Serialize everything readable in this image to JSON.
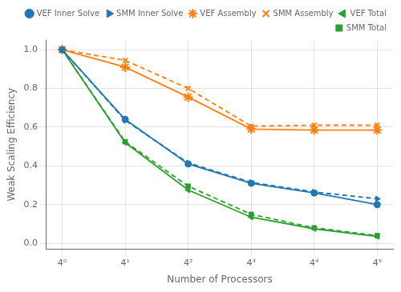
{
  "chart_data": {
    "type": "line",
    "x": [
      0,
      1,
      2,
      3,
      4,
      5
    ],
    "xlim": [
      -0.25,
      5.25
    ],
    "xticks": [
      {
        "value": 0,
        "label": "4⁰"
      },
      {
        "value": 1,
        "label": "4¹"
      },
      {
        "value": 2,
        "label": "4²"
      },
      {
        "value": 3,
        "label": "4³"
      },
      {
        "value": 4,
        "label": "4⁴"
      },
      {
        "value": 5,
        "label": "4⁵"
      }
    ],
    "xlabel": "Number of Processors",
    "ylabel": "Weak Scaling Efficiency",
    "ylim": [
      -0.03,
      1.05
    ],
    "yticks": [
      {
        "value": 0,
        "label": "0.0"
      },
      0.2,
      0.4,
      0.6,
      0.8,
      {
        "value": 1,
        "label": "1.0"
      }
    ],
    "grid": true,
    "legend": "upper right",
    "series": [
      {
        "name": "VEF Inner Solve",
        "color": "#1f77b4",
        "line_style": "solid",
        "marker": "circle",
        "values": [
          1.0,
          0.64,
          0.41,
          0.31,
          0.26,
          0.2
        ]
      },
      {
        "name": "SMM Inner Solve",
        "color": "#1f77b4",
        "line_style": "dashed",
        "marker": "triangle-right",
        "values": [
          1.0,
          0.635,
          0.415,
          0.315,
          0.265,
          0.23
        ]
      },
      {
        "name": "VEF Assembly",
        "color": "#ff7f0e",
        "line_style": "solid",
        "marker": "star",
        "values": [
          1.0,
          0.91,
          0.755,
          0.59,
          0.585,
          0.585
        ]
      },
      {
        "name": "SMM Assembly",
        "color": "#ff7f0e",
        "line_style": "dashed",
        "marker": "x",
        "values": [
          1.0,
          0.945,
          0.8,
          0.605,
          0.61,
          0.61
        ]
      },
      {
        "name": "VEF Total",
        "color": "#2ca02c",
        "line_style": "solid",
        "marker": "triangle-left",
        "values": [
          1.0,
          0.52,
          0.275,
          0.135,
          0.075,
          0.035
        ]
      },
      {
        "name": "SMM Total",
        "color": "#2ca02c",
        "line_style": "dashed",
        "marker": "square",
        "values": [
          1.0,
          0.525,
          0.295,
          0.15,
          0.08,
          0.04
        ]
      }
    ]
  }
}
